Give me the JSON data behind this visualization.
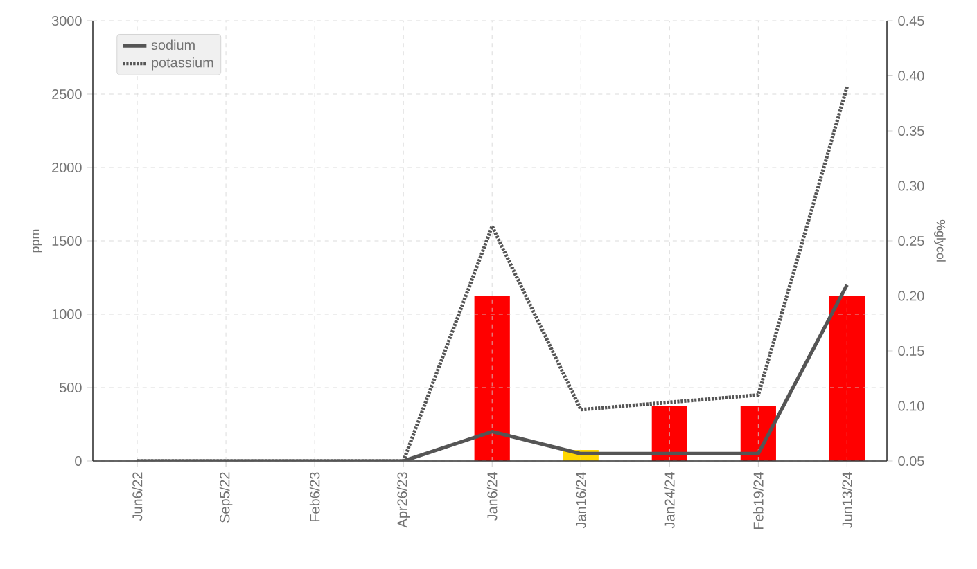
{
  "chart_data": {
    "type": "line",
    "categories": [
      "Jun6/22",
      "Sep5/22",
      "Feb6/23",
      "Apr26/23",
      "Jan6/24",
      "Jan16/24",
      "Jan24/24",
      "Feb19/24",
      "Jun13/24"
    ],
    "series": [
      {
        "name": "sodium",
        "color": "#555555",
        "line_style": "solid",
        "values": [
          0,
          0,
          0,
          0,
          200,
          50,
          50,
          50,
          1200
        ]
      },
      {
        "name": "potassium",
        "color": "#555555",
        "line_style": "dotted",
        "values": [
          0,
          0,
          0,
          0,
          1600,
          350,
          400,
          450,
          2550
        ]
      },
      {
        "type": "bar",
        "axis": "y2",
        "colors": [
          "#ff0000",
          "#ff0000",
          "#ff0000",
          "#ff0000",
          "#ff0000",
          "#ffd700",
          "#ff0000",
          "#ff0000",
          "#ff0000"
        ],
        "values": [
          null,
          null,
          null,
          null,
          0.2,
          0.06,
          0.1,
          0.1,
          0.2
        ]
      }
    ],
    "ylabel": "ppm",
    "y2label": "%glycol",
    "ylim": [
      0,
      3000
    ],
    "yticks": [
      0,
      500,
      1000,
      1500,
      2000,
      2500,
      3000
    ],
    "y2lim": [
      0.05,
      0.45
    ],
    "y2ticks": [
      {
        "value": 0.05,
        "label": "0.05"
      },
      {
        "value": 0.1,
        "label": "0.10"
      },
      {
        "value": 0.15,
        "label": "0.15"
      },
      {
        "value": 0.2,
        "label": "0.20"
      },
      {
        "value": 0.25,
        "label": "0.25"
      },
      {
        "value": 0.3,
        "label": "0.30"
      },
      {
        "value": 0.35,
        "label": "0.35"
      },
      {
        "value": 0.4,
        "label": "0.40"
      },
      {
        "value": 0.45,
        "label": "0.45"
      }
    ],
    "grid": true,
    "legend": "top left"
  }
}
